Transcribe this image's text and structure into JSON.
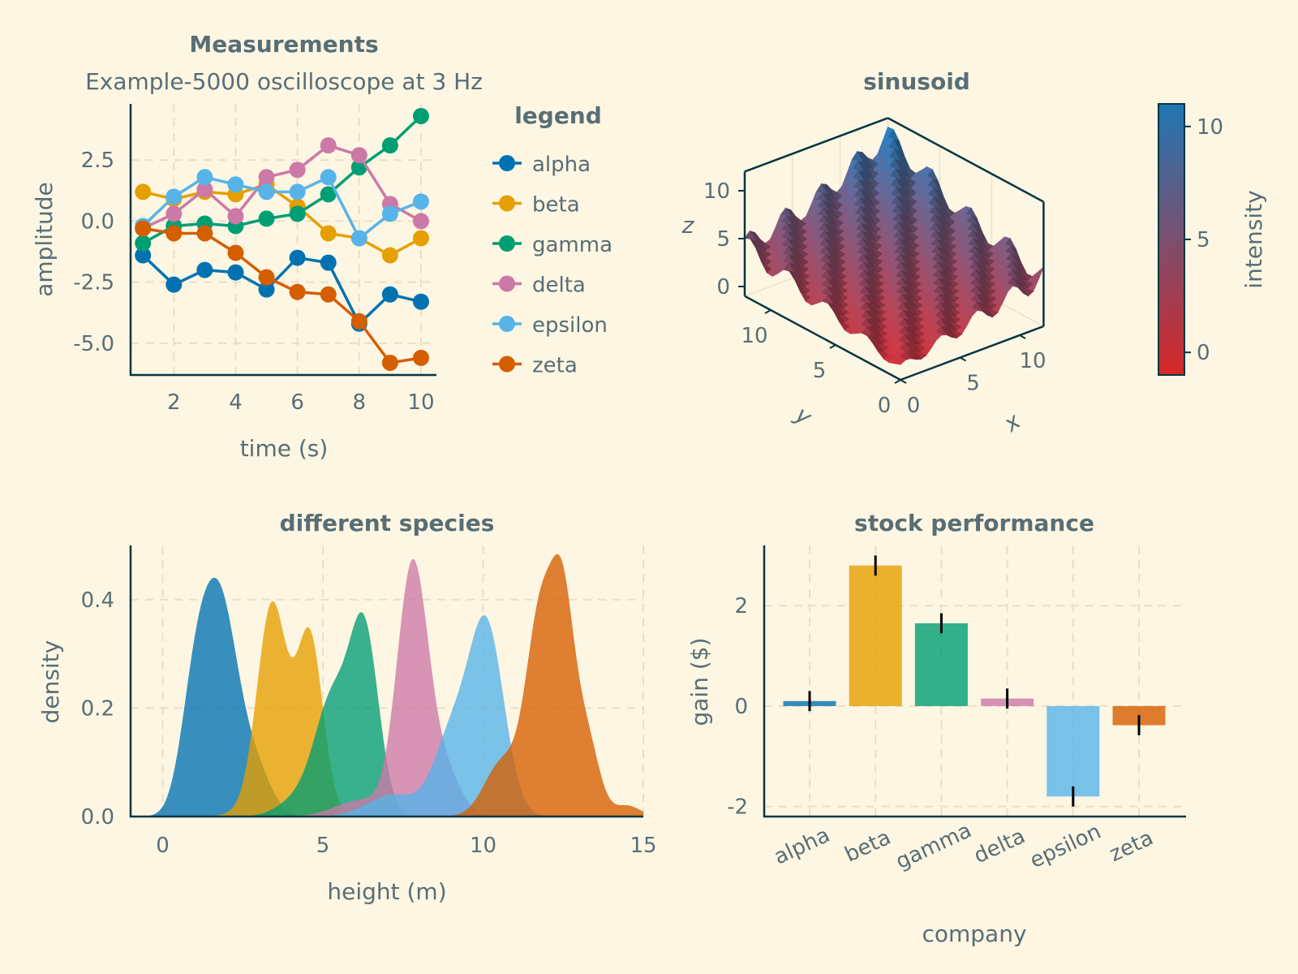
{
  "colors": {
    "background": "#fdf6e3",
    "text": "#586e75",
    "axis": "#073642",
    "series": [
      "#0072b2",
      "#e69f00",
      "#009e73",
      "#cc79a7",
      "#56b4e9",
      "#d55e00"
    ]
  },
  "chart_data": [
    {
      "type": "line",
      "title": "Measurements",
      "subtitle": "Example-5000 oscilloscope at 3 Hz",
      "xlabel": "time (s)",
      "ylabel": "amplitude",
      "xlim": [
        0.6,
        10.5
      ],
      "ylim": [
        -6.3,
        4.8
      ],
      "xticks": [
        2,
        4,
        6,
        8,
        10
      ],
      "yticks": [
        -5.0,
        -2.5,
        0.0,
        2.5
      ],
      "ytick_labels": [
        "-5.0",
        "-2.5",
        "0.0",
        "2.5"
      ],
      "grid": true,
      "legend": {
        "title": "legend",
        "placement": "right"
      },
      "x": [
        1,
        2,
        3,
        4,
        5,
        6,
        7,
        8,
        9,
        10
      ],
      "series": [
        {
          "name": "alpha",
          "values": [
            -1.4,
            -2.6,
            -2.0,
            -2.1,
            -2.8,
            -1.5,
            -1.7,
            -4.2,
            -3.0,
            -3.3
          ]
        },
        {
          "name": "beta",
          "values": [
            1.2,
            0.9,
            1.2,
            1.1,
            1.5,
            0.6,
            -0.5,
            -0.7,
            -1.4,
            -0.7
          ]
        },
        {
          "name": "gamma",
          "values": [
            -0.9,
            -0.2,
            -0.1,
            -0.2,
            0.1,
            0.3,
            1.1,
            2.2,
            3.1,
            4.3
          ]
        },
        {
          "name": "delta",
          "values": [
            -0.3,
            0.3,
            1.3,
            0.2,
            1.8,
            2.1,
            3.1,
            2.7,
            0.7,
            0.0
          ]
        },
        {
          "name": "epsilon",
          "values": [
            -0.2,
            1.0,
            1.8,
            1.5,
            1.2,
            1.2,
            1.8,
            -0.7,
            0.3,
            0.8
          ]
        },
        {
          "name": "zeta",
          "values": [
            -0.3,
            -0.5,
            -0.5,
            -1.3,
            -2.3,
            -2.9,
            -3.0,
            -4.1,
            -5.8,
            -5.6
          ]
        }
      ]
    },
    {
      "type": "surface",
      "title": "sinusoid",
      "xlabel": "x",
      "ylabel": "y",
      "zlabel": "z",
      "xlim": [
        0,
        12
      ],
      "ylim": [
        0,
        12
      ],
      "zlim": [
        -1,
        12
      ],
      "xticks": [
        0,
        5,
        10
      ],
      "yticks": [
        0,
        5,
        10
      ],
      "zticks": [
        0,
        5,
        10
      ],
      "colorbar": {
        "label": "intensity",
        "range": [
          -1,
          11
        ],
        "ticks": [
          0,
          5,
          10
        ],
        "colors": [
          "#d62728",
          "#1f77b4"
        ]
      }
    },
    {
      "type": "area",
      "title": "different species",
      "xlabel": "height (m)",
      "ylabel": "density",
      "xlim": [
        -1,
        15
      ],
      "ylim": [
        0,
        0.5
      ],
      "xticks": [
        0,
        5,
        10,
        15
      ],
      "yticks": [
        0.0,
        0.2,
        0.4
      ],
      "ytick_labels": [
        "0.0",
        "0.2",
        "0.4"
      ],
      "grid": true,
      "series": [
        {
          "peaks": [
            [
              1.0,
              0.2,
              0.45
            ],
            [
              1.8,
              0.38,
              0.55
            ],
            [
              2.9,
              0.08,
              0.5
            ]
          ]
        },
        {
          "peaks": [
            [
              3.4,
              0.34,
              0.45
            ],
            [
              4.6,
              0.3,
              0.4
            ],
            [
              3.8,
              0.06,
              0.8
            ]
          ]
        },
        {
          "peaks": [
            [
              5.3,
              0.21,
              0.55
            ],
            [
              6.3,
              0.33,
              0.45
            ],
            [
              4.2,
              0.03,
              0.6
            ]
          ]
        },
        {
          "peaks": [
            [
              7.8,
              0.46,
              0.48
            ],
            [
              8.8,
              0.08,
              0.5
            ],
            [
              6.2,
              0.03,
              0.8
            ]
          ]
        },
        {
          "peaks": [
            [
              9.0,
              0.14,
              0.55
            ],
            [
              10.1,
              0.35,
              0.55
            ],
            [
              7.2,
              0.04,
              0.8
            ]
          ]
        },
        {
          "peaks": [
            [
              11.8,
              0.37,
              0.45
            ],
            [
              12.5,
              0.32,
              0.35
            ],
            [
              13.2,
              0.15,
              0.4
            ],
            [
              10.6,
              0.1,
              0.55
            ],
            [
              14.5,
              0.02,
              0.4
            ]
          ]
        }
      ]
    },
    {
      "type": "bar",
      "title": "stock performance",
      "xlabel": "company",
      "ylabel": "gain ($)",
      "ylim": [
        -2.2,
        3.2
      ],
      "yticks": [
        -2,
        0,
        2
      ],
      "grid": true,
      "categories": [
        "alpha",
        "beta",
        "gamma",
        "delta",
        "epsilon",
        "zeta"
      ],
      "values": [
        0.1,
        2.8,
        1.65,
        0.15,
        -1.8,
        -0.38
      ],
      "errors": [
        0.2,
        0.2,
        0.2,
        0.2,
        0.2,
        0.2
      ]
    }
  ]
}
